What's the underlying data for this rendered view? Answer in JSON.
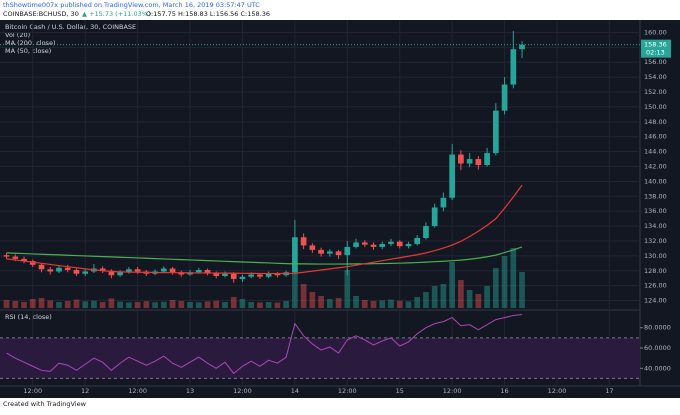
{
  "header": {
    "published": "thShowtime007x published on TradingView.com, March 16, 2019 03:57:47 UTC",
    "symbol": "COINBASE:BCHUSD, 30",
    "change": "▲ +15.73 (+11.03%)",
    "ohlc": "O:157.75 H:158.83 L:156.56 C:158.36"
  },
  "footer": "Created with TradingView",
  "chart_data": {
    "type": "candlestick",
    "title": "Bitcoin Cash / U.S. Dollar, 30, COINBASE",
    "volume_label": "Vol (20)",
    "x": [
      6,
      8,
      10,
      12,
      14,
      16,
      18,
      20,
      22,
      24,
      26,
      28,
      30,
      32,
      34,
      36,
      38,
      40,
      42,
      44,
      46,
      48,
      50,
      52,
      54,
      56,
      58,
      60,
      62,
      64,
      66,
      68,
      70,
      72,
      74,
      76,
      78,
      80,
      82,
      84,
      86,
      88,
      90,
      92,
      94,
      96,
      98,
      100,
      102,
      104,
      106,
      108,
      110,
      112,
      114,
      116,
      118,
      120,
      122,
      124
    ],
    "open": [
      130.1,
      129.9,
      129.6,
      129.3,
      128.8,
      128.2,
      127.9,
      128.4,
      128.1,
      127.6,
      127.9,
      128.3,
      128.0,
      127.4,
      127.8,
      128.2,
      127.9,
      127.6,
      127.9,
      128.3,
      127.8,
      127.5,
      127.8,
      128.1,
      127.7,
      127.3,
      127.6,
      126.9,
      127.2,
      127.5,
      127.2,
      127.6,
      127.4,
      127.8,
      132.5,
      131.4,
      130.8,
      130.3,
      130.6,
      130.1,
      131.2,
      131.8,
      131.5,
      131.2,
      131.6,
      131.9,
      131.3,
      131.6,
      132.4,
      134.0,
      136.5,
      137.8,
      143.6,
      142.4,
      143.0,
      142.2,
      143.8,
      149.5,
      153.0,
      157.75
    ],
    "high": [
      130.4,
      130.2,
      129.9,
      129.5,
      129.0,
      128.5,
      128.7,
      128.8,
      128.3,
      128.2,
      128.9,
      128.6,
      128.2,
      128.1,
      128.5,
      128.5,
      128.1,
      128.2,
      128.6,
      128.5,
      128.0,
      128.1,
      128.4,
      128.3,
      127.9,
      127.9,
      127.8,
      127.5,
      127.8,
      127.7,
      127.9,
      127.8,
      128.0,
      134.8,
      133.0,
      131.7,
      131.1,
      130.9,
      130.8,
      132.0,
      132.3,
      132.1,
      131.8,
      131.9,
      132.3,
      132.1,
      131.9,
      132.8,
      134.5,
      137.0,
      138.5,
      145.0,
      144.2,
      143.8,
      143.4,
      144.5,
      150.5,
      154.0,
      160.2,
      158.83
    ],
    "low": [
      129.6,
      129.3,
      129.0,
      128.5,
      127.8,
      127.5,
      127.7,
      127.8,
      127.3,
      127.3,
      127.7,
      127.7,
      127.0,
      127.2,
      127.6,
      127.6,
      127.3,
      127.4,
      127.7,
      127.5,
      127.2,
      127.3,
      127.6,
      127.4,
      127.0,
      127.1,
      126.4,
      126.5,
      127.0,
      126.9,
      127.0,
      127.1,
      127.2,
      127.6,
      130.9,
      130.4,
      129.9,
      129.9,
      129.6,
      127.4,
      131.0,
      131.2,
      130.8,
      130.9,
      131.3,
      131.0,
      131.0,
      131.4,
      132.2,
      133.8,
      136.0,
      137.5,
      141.5,
      141.9,
      141.6,
      142.0,
      143.5,
      149.0,
      152.5,
      156.56
    ],
    "close": [
      129.9,
      129.6,
      129.3,
      128.8,
      128.2,
      127.9,
      128.4,
      128.1,
      127.6,
      127.9,
      128.3,
      128.0,
      127.4,
      127.8,
      128.2,
      127.9,
      127.6,
      127.9,
      128.3,
      127.8,
      127.5,
      127.8,
      128.1,
      127.7,
      127.3,
      127.6,
      126.9,
      127.2,
      127.5,
      127.2,
      127.6,
      127.4,
      127.8,
      132.5,
      131.4,
      130.8,
      130.3,
      130.6,
      130.1,
      131.2,
      131.8,
      131.5,
      131.2,
      131.6,
      131.9,
      131.3,
      131.6,
      132.4,
      134.0,
      136.5,
      137.8,
      143.6,
      142.4,
      143.0,
      142.2,
      143.8,
      149.5,
      153.0,
      157.75,
      158.36
    ],
    "volume": [
      40,
      35,
      30,
      45,
      50,
      38,
      30,
      35,
      42,
      33,
      36,
      30,
      48,
      32,
      28,
      30,
      34,
      29,
      31,
      40,
      35,
      30,
      28,
      33,
      36,
      30,
      55,
      45,
      30,
      28,
      30,
      27,
      35,
      220,
      120,
      80,
      60,
      45,
      50,
      190,
      60,
      40,
      35,
      38,
      42,
      36,
      33,
      55,
      80,
      110,
      120,
      230,
      140,
      90,
      70,
      110,
      200,
      260,
      300,
      180
    ],
    "up_color": "#26a69a",
    "down_color": "#ef5350",
    "series": [
      {
        "name": "MA (200, close)",
        "color": "#4caf50",
        "values": [
          130.4,
          130.35,
          130.31,
          130.26,
          130.22,
          130.17,
          130.13,
          130.08,
          130.04,
          129.99,
          129.95,
          129.9,
          129.86,
          129.81,
          129.77,
          129.72,
          129.68,
          129.63,
          129.59,
          129.54,
          129.5,
          129.45,
          129.41,
          129.36,
          129.32,
          129.27,
          129.23,
          129.18,
          129.14,
          129.09,
          129.05,
          129.0,
          128.96,
          128.92,
          128.92,
          128.91,
          128.9,
          128.9,
          128.9,
          128.91,
          128.92,
          128.93,
          128.95,
          128.97,
          128.99,
          129.02,
          129.06,
          129.1,
          129.16,
          129.22,
          129.28,
          129.35,
          129.43,
          129.55,
          129.7,
          129.88,
          130.1,
          130.45,
          130.8,
          131.2
        ]
      },
      {
        "name": "MA (50, close)",
        "color": "#e53935",
        "values": [
          129.6,
          129.45,
          129.3,
          129.15,
          129.0,
          128.85,
          128.7,
          128.55,
          128.4,
          128.25,
          128.12,
          128.0,
          127.9,
          127.85,
          127.82,
          127.8,
          127.78,
          127.76,
          127.75,
          127.74,
          127.73,
          127.72,
          127.71,
          127.7,
          127.69,
          127.68,
          127.67,
          127.66,
          127.65,
          127.64,
          127.64,
          127.63,
          127.63,
          127.65,
          127.8,
          127.95,
          128.1,
          128.25,
          128.4,
          128.55,
          128.75,
          128.95,
          129.15,
          129.35,
          129.55,
          129.75,
          129.95,
          130.15,
          130.4,
          130.7,
          131.05,
          131.45,
          131.95,
          132.6,
          133.3,
          134.1,
          135.0,
          136.4,
          137.9,
          139.5
        ]
      }
    ],
    "last_price": 158.36,
    "countdown": "02:13",
    "xlim": [
      4.5,
      151
    ],
    "xticks": [
      {
        "value": 12,
        "label": "12:00"
      },
      {
        "value": 24,
        "label": "12"
      },
      {
        "value": 36,
        "label": "12:00"
      },
      {
        "value": 48,
        "label": "13"
      },
      {
        "value": 60,
        "label": "12:00"
      },
      {
        "value": 72,
        "label": "14"
      },
      {
        "value": 84,
        "label": "12:00"
      },
      {
        "value": 96,
        "label": "15"
      },
      {
        "value": 108,
        "label": "12:00"
      },
      {
        "value": 120,
        "label": "16"
      },
      {
        "value": 132,
        "label": "12:00"
      },
      {
        "value": 144,
        "label": "17"
      }
    ],
    "ylim": [
      123,
      161
    ],
    "yticks": [
      {
        "value": 124,
        "label": "124.00"
      },
      {
        "value": 126,
        "label": "126.00"
      },
      {
        "value": 128,
        "label": "128.00"
      },
      {
        "value": 130,
        "label": "130.00"
      },
      {
        "value": 132,
        "label": "132.00"
      },
      {
        "value": 134,
        "label": "134.00"
      },
      {
        "value": 136,
        "label": "136.00"
      },
      {
        "value": 138,
        "label": "138.00"
      },
      {
        "value": 140,
        "label": "140.00"
      },
      {
        "value": 142,
        "label": "142.00"
      },
      {
        "value": 144,
        "label": "144.00"
      },
      {
        "value": 146,
        "label": "146.00"
      },
      {
        "value": 148,
        "label": "148.00"
      },
      {
        "value": 150,
        "label": "150.00"
      },
      {
        "value": 152,
        "label": "152.00"
      },
      {
        "value": 154,
        "label": "154.00"
      },
      {
        "value": 156,
        "label": "156.00"
      },
      {
        "value": 158,
        "label": "158.00"
      },
      {
        "value": 160,
        "label": "160.00"
      }
    ],
    "grid": true,
    "rsi": {
      "name": "RSI (14, close)",
      "color": "#ab47bc",
      "values": [
        55,
        50,
        46,
        42,
        38,
        37,
        45,
        43,
        38,
        44,
        50,
        46,
        38,
        45,
        51,
        47,
        43,
        47,
        52,
        45,
        41,
        46,
        51,
        45,
        40,
        46,
        35,
        42,
        47,
        42,
        48,
        45,
        51,
        84,
        72,
        64,
        58,
        61,
        55,
        68,
        72,
        68,
        63,
        67,
        70,
        62,
        66,
        74,
        80,
        84,
        86,
        90,
        82,
        83,
        78,
        83,
        88,
        90,
        92,
        93
      ],
      "ylim": [
        25.5,
        95.5
      ],
      "yticks": [
        {
          "value": 40,
          "label": "40.0000"
        },
        {
          "value": 60,
          "label": "60.0000"
        },
        {
          "value": 80,
          "label": "80.0000"
        }
      ],
      "bands": [
        30,
        70
      ]
    }
  }
}
